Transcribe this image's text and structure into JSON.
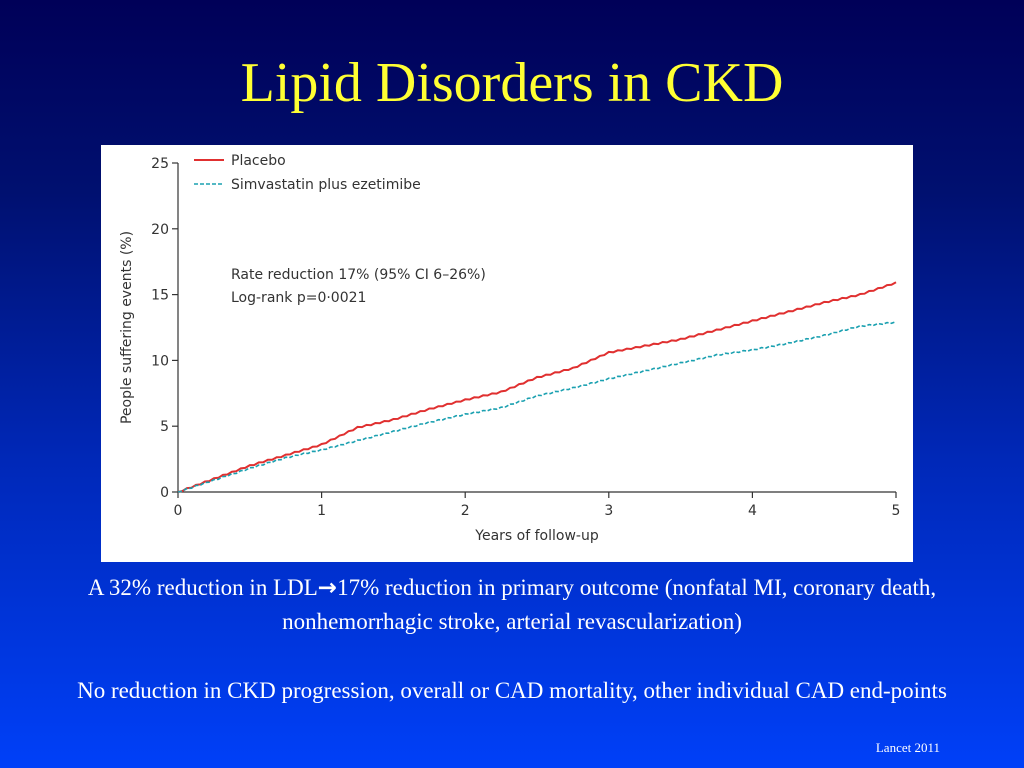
{
  "slide": {
    "title": "Lipid Disorders in CKD",
    "caption_line1_before": "A 32% reduction in LDL",
    "caption_arrow": "→",
    "caption_line1_after": "17% reduction in primary outcome (nonfatal MI, coronary death, nonhemorrhagic stroke, arterial revascularization)",
    "caption_line2": "No reduction in CKD progression, overall or CAD mortality, other individual CAD end-points",
    "citation": "Lancet 2011"
  },
  "colors": {
    "title": "#ffff33",
    "placebo": "#e03030",
    "treatment": "#1aa0b0"
  },
  "chart_data": {
    "type": "line",
    "xlabel": "Years of follow-up",
    "ylabel": "People suffering events (%)",
    "xlim": [
      0,
      5
    ],
    "ylim": [
      0,
      25
    ],
    "xticks": [
      "0",
      "1",
      "2",
      "3",
      "4",
      "5"
    ],
    "yticks": [
      "0",
      "5",
      "10",
      "15",
      "20",
      "25"
    ],
    "grid": false,
    "legend_position": "top-left",
    "annotation_lines": [
      "Rate reduction 17% (95% CI 6–26%)",
      "Log-rank p=0·0021"
    ],
    "series": [
      {
        "name": "Placebo",
        "style": "solid",
        "x": [
          0,
          0.25,
          0.5,
          0.75,
          1.0,
          1.25,
          1.5,
          1.75,
          2.0,
          2.25,
          2.5,
          2.75,
          3.0,
          3.25,
          3.5,
          3.75,
          4.0,
          4.25,
          4.5,
          4.75,
          5.0
        ],
        "y": [
          0,
          1.0,
          2.0,
          2.8,
          3.6,
          4.9,
          5.5,
          6.3,
          7.0,
          7.6,
          8.7,
          9.4,
          10.6,
          11.1,
          11.6,
          12.3,
          13.0,
          13.7,
          14.4,
          15.0,
          15.9
        ]
      },
      {
        "name": "Simvastatin plus ezetimibe",
        "style": "dashed",
        "x": [
          0,
          0.25,
          0.5,
          0.75,
          1.0,
          1.25,
          1.5,
          1.75,
          2.0,
          2.25,
          2.5,
          2.75,
          3.0,
          3.25,
          3.5,
          3.75,
          4.0,
          4.25,
          4.5,
          4.75,
          5.0
        ],
        "y": [
          0,
          0.9,
          1.8,
          2.6,
          3.2,
          3.9,
          4.6,
          5.3,
          5.9,
          6.4,
          7.3,
          7.9,
          8.6,
          9.2,
          9.8,
          10.4,
          10.8,
          11.3,
          11.9,
          12.6,
          12.9
        ]
      }
    ]
  }
}
